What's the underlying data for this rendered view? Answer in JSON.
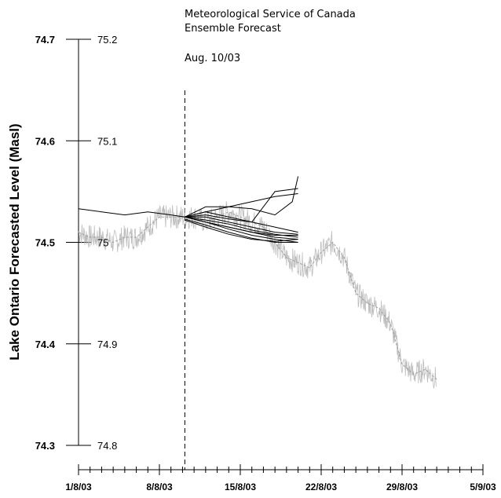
{
  "chart_data": {
    "type": "line",
    "title_lines": [
      "Meteorological Service of Canada",
      "Ensemble Forecast"
    ],
    "subtitle": "Aug. 10/03",
    "ylabel": "Lake Ontario Forecasted Level (Masl)",
    "xlabel": "",
    "x_ticks": [
      "1/8/03",
      "8/8/03",
      "15/8/03",
      "22/8/03",
      "29/8/03",
      "5/9/03"
    ],
    "x_tick_days": [
      1,
      8,
      15,
      22,
      29,
      36
    ],
    "xlim": [
      1,
      36
    ],
    "y_ticks_outer": [
      "74.7",
      "74.6",
      "74.5",
      "74.4",
      "74.3"
    ],
    "y_ticks_outer_values": [
      74.7,
      74.6,
      74.5,
      74.4,
      74.3
    ],
    "y_ticks_inner": [
      "75.2",
      "75.1",
      "75",
      "74.9",
      "74.8"
    ],
    "ylim": [
      74.3,
      74.7
    ],
    "forecast_day": 10.2,
    "colors": {
      "observed": "#bdbdbd",
      "forecast": "#000000",
      "dashed": "#000000"
    },
    "observed_daily_mean": {
      "x": [
        1,
        2,
        3,
        4,
        5,
        6,
        7,
        8,
        9,
        10,
        11,
        12,
        13,
        14,
        15,
        16,
        17,
        18,
        19,
        20,
        21,
        22,
        23,
        24,
        25,
        26,
        27,
        28,
        29,
        30,
        31,
        32
      ],
      "y": [
        74.51,
        74.505,
        74.505,
        74.5,
        74.505,
        74.505,
        74.515,
        74.525,
        74.525,
        74.525,
        74.525,
        74.52,
        74.525,
        74.53,
        74.525,
        74.52,
        74.515,
        74.5,
        74.485,
        74.48,
        74.475,
        74.49,
        74.5,
        74.485,
        74.45,
        74.44,
        74.435,
        74.42,
        74.38,
        74.37,
        74.375,
        74.365
      ]
    },
    "observed_raw_std": 0.012,
    "series": [
      {
        "x": [
          1,
          3,
          5,
          7,
          9,
          10.2
        ],
        "y": [
          74.533,
          74.53,
          74.527,
          74.53,
          74.527,
          74.525
        ]
      },
      {
        "x": [
          10.2,
          12,
          14,
          16,
          18,
          19.5,
          20
        ],
        "y": [
          74.525,
          74.535,
          74.535,
          74.533,
          74.527,
          74.54,
          74.565
        ]
      },
      {
        "x": [
          10.2,
          12,
          14,
          16,
          18,
          20
        ],
        "y": [
          74.525,
          74.53,
          74.525,
          74.52,
          74.55,
          74.553
        ]
      },
      {
        "x": [
          10.2,
          12,
          14,
          16,
          18,
          20
        ],
        "y": [
          74.525,
          74.53,
          74.535,
          74.54,
          74.545,
          74.548
        ]
      },
      {
        "x": [
          10.2,
          12,
          14,
          16,
          18,
          20
        ],
        "y": [
          74.525,
          74.527,
          74.523,
          74.52,
          74.515,
          74.51
        ]
      },
      {
        "x": [
          10.2,
          12,
          14,
          16,
          18,
          20
        ],
        "y": [
          74.525,
          74.525,
          74.52,
          74.515,
          74.51,
          74.508
        ]
      },
      {
        "x": [
          10.2,
          12,
          14,
          16,
          18,
          20
        ],
        "y": [
          74.525,
          74.52,
          74.515,
          74.51,
          74.505,
          74.503
        ]
      },
      {
        "x": [
          10.2,
          12,
          14,
          16,
          18,
          20
        ],
        "y": [
          74.525,
          74.52,
          74.513,
          74.507,
          74.503,
          74.5
        ]
      },
      {
        "x": [
          10.2,
          12,
          14,
          16,
          18,
          20
        ],
        "y": [
          74.523,
          74.517,
          74.51,
          74.504,
          74.5,
          74.5
        ]
      },
      {
        "x": [
          10.2,
          12,
          14,
          16,
          18,
          20
        ],
        "y": [
          74.522,
          74.515,
          74.508,
          74.503,
          74.501,
          74.503
        ]
      },
      {
        "x": [
          10.2,
          12,
          14,
          16,
          18,
          20
        ],
        "y": [
          74.525,
          74.52,
          74.515,
          74.51,
          74.507,
          74.507
        ]
      },
      {
        "x": [
          10.2,
          12,
          14,
          16,
          18,
          20
        ],
        "y": [
          74.525,
          74.522,
          74.518,
          74.512,
          74.508,
          74.505
        ]
      }
    ]
  }
}
